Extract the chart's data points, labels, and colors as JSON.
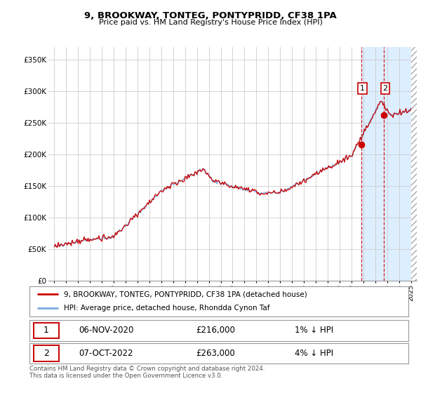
{
  "title": "9, BROOKWAY, TONTEG, PONTYPRIDD, CF38 1PA",
  "subtitle": "Price paid vs. HM Land Registry's House Price Index (HPI)",
  "legend_line1": "9, BROOKWAY, TONTEG, PONTYPRIDD, CF38 1PA (detached house)",
  "legend_line2": "HPI: Average price, detached house, Rhondda Cynon Taf",
  "transaction1_date": "06-NOV-2020",
  "transaction1_price": "£216,000",
  "transaction1_rel": "1% ↓ HPI",
  "transaction2_date": "07-OCT-2022",
  "transaction2_price": "£263,000",
  "transaction2_rel": "4% ↓ HPI",
  "footer": "Contains HM Land Registry data © Crown copyright and database right 2024.\nThis data is licensed under the Open Government Licence v3.0.",
  "hpi_color": "#7aaadd",
  "price_color": "#cc0000",
  "shading_color": "#ddeeff",
  "background_color": "#ffffff",
  "grid_color": "#cccccc",
  "ylim": [
    0,
    370000
  ],
  "yticks": [
    0,
    50000,
    100000,
    150000,
    200000,
    250000,
    300000,
    350000
  ],
  "t1_year": 2020.833,
  "t1_price": 216000,
  "t2_year": 2022.75,
  "t2_price": 263000,
  "xmin": 1994.5,
  "xmax": 2025.5
}
